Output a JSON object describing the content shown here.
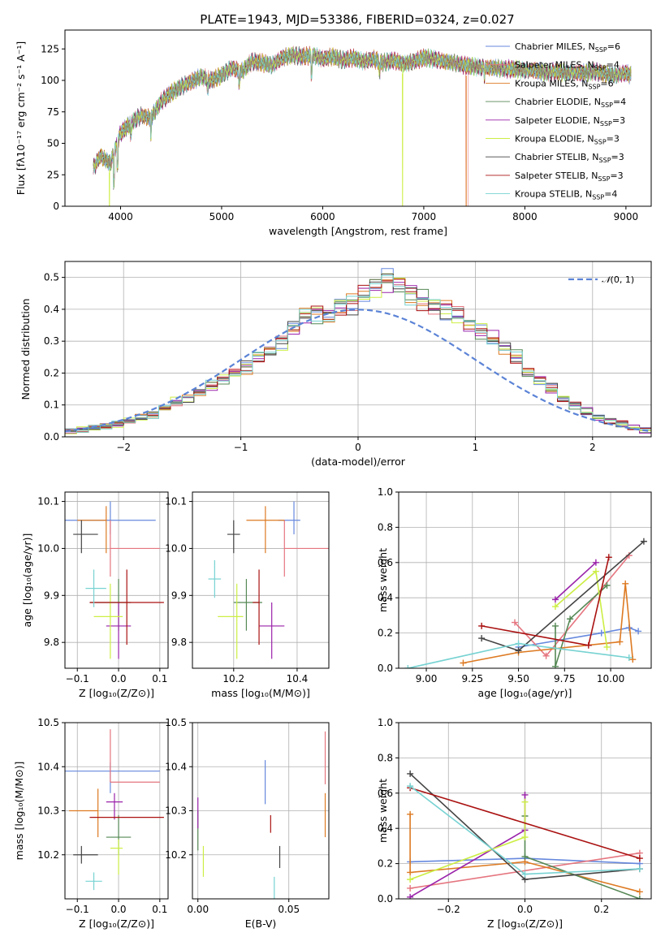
{
  "colors": [
    "#6688dd",
    "#e5757f",
    "#dd7a22",
    "#558855",
    "#9a22aa",
    "#ccee44",
    "#444444",
    "#aa1111",
    "#77d2d2"
  ],
  "chart_data": [
    {
      "type": "line",
      "title": "PLATE=1943, MJD=53386, FIBERID=0324, z=0.027",
      "xlabel": "wavelength [Angstrom, rest frame]",
      "ylabel": "Flux [fλ10⁻¹⁷ erg cm⁻² s⁻¹ A⁻¹]",
      "xlim": [
        3450,
        9250
      ],
      "ylim": [
        0,
        140
      ],
      "xticks": [
        4000,
        5000,
        6000,
        7000,
        8000,
        9000
      ],
      "yticks": [
        0,
        25,
        50,
        75,
        100,
        125
      ],
      "legend_position": "top-right",
      "continuum": {
        "x": [
          3730,
          3800,
          3900,
          4000,
          4100,
          4200,
          4300,
          4400,
          4500,
          4600,
          4700,
          4800,
          4900,
          5000,
          5100,
          5200,
          5300,
          5400,
          5500,
          5600,
          5700,
          5800,
          5900,
          6000,
          6100,
          6200,
          6300,
          6400,
          6500,
          6600,
          6700,
          6800,
          6900,
          7000,
          7100,
          7200,
          7300,
          7400,
          7500,
          7600,
          7700,
          7800,
          7900,
          8000,
          8100,
          8200,
          8300,
          8400,
          8500,
          8600,
          8700,
          8800,
          8900,
          9000,
          9050
        ],
        "y": [
          30,
          40,
          34,
          58,
          66,
          72,
          70,
          83,
          90,
          95,
          99,
          103,
          100,
          104,
          110,
          107,
          115,
          114,
          112,
          118,
          120,
          119,
          120,
          117,
          119,
          116,
          118,
          115,
          117,
          114,
          116,
          113,
          115,
          118,
          117,
          115,
          114,
          112,
          111,
          110,
          110,
          109,
          109,
          108,
          108,
          106,
          107,
          106,
          106,
          106,
          107,
          105,
          104,
          106,
          104
        ]
      },
      "dropouts": [
        {
          "series": "Kroupa ELODIE, N_SSP=3",
          "x": 3890
        },
        {
          "series": "Kroupa ELODIE, N_SSP=3",
          "x": 6790
        },
        {
          "series": "Salpeter MILES, N_SSP=4",
          "x": 7420
        }
      ],
      "series": [
        {
          "name": "Chabrier MILES, N",
          "sub": "SSP",
          "suffix": "=6"
        },
        {
          "name": "Salpeter MILES, N",
          "sub": "SSP",
          "suffix": "=4"
        },
        {
          "name": "Kroupa MILES, N",
          "sub": "SSP",
          "suffix": "=6"
        },
        {
          "name": "Chabrier ELODIE, N",
          "sub": "SSP",
          "suffix": "=4"
        },
        {
          "name": "Salpeter ELODIE, N",
          "sub": "SSP",
          "suffix": "=3"
        },
        {
          "name": "Kroupa ELODIE, N",
          "sub": "SSP",
          "suffix": "=3"
        },
        {
          "name": "Chabrier STELIB, N",
          "sub": "SSP",
          "suffix": "=3"
        },
        {
          "name": "Salpeter STELIB, N",
          "sub": "SSP",
          "suffix": "=3"
        },
        {
          "name": "Kroupa STELIB, N",
          "sub": "SSP",
          "suffix": "=4"
        }
      ]
    },
    {
      "type": "histogram",
      "xlabel": "(data-model)/error",
      "ylabel": "Normed distribution",
      "xlim": [
        -2.5,
        2.5
      ],
      "ylim": [
        0,
        0.55
      ],
      "xticks": [
        -2,
        -1,
        0,
        1,
        2
      ],
      "yticks": [
        0.0,
        0.1,
        0.2,
        0.3,
        0.4,
        0.5
      ],
      "grid": true,
      "bin_edges_start": -2.5,
      "bin_width": 0.1,
      "reference_curve": {
        "name": "N(0,1)",
        "label_script": "𝒩",
        "label_args": "(0, 1)",
        "style": "dashed",
        "mean": 0,
        "sigma": 1
      },
      "densities": [
        0.018,
        0.022,
        0.028,
        0.034,
        0.04,
        0.05,
        0.06,
        0.07,
        0.09,
        0.11,
        0.12,
        0.14,
        0.16,
        0.18,
        0.2,
        0.22,
        0.25,
        0.27,
        0.3,
        0.34,
        0.38,
        0.39,
        0.38,
        0.41,
        0.42,
        0.45,
        0.47,
        0.49,
        0.48,
        0.45,
        0.43,
        0.41,
        0.4,
        0.38,
        0.35,
        0.33,
        0.31,
        0.28,
        0.25,
        0.2,
        0.18,
        0.15,
        0.12,
        0.1,
        0.08,
        0.06,
        0.05,
        0.04,
        0.03,
        0.02
      ]
    },
    {
      "type": "scatter",
      "xlabel": "Z [log₁₀(Z/Z⊙)]",
      "ylabel": "age  [log₁₀(age/yr)]",
      "xlim": [
        -0.13,
        0.12
      ],
      "ylim": [
        9.745,
        10.12
      ],
      "xticks": [
        -0.1,
        0.0,
        0.1
      ],
      "xticklabels": [
        "−0.1",
        "0.0",
        "0.1"
      ],
      "yticks": [
        9.8,
        9.9,
        10.0,
        10.1
      ],
      "grid": true,
      "points": [
        {
          "x": -0.02,
          "y": 10.06,
          "xerr": [
            0.12,
            0.11
          ],
          "yerr": [
            0.03,
            0.04
          ]
        },
        {
          "x": -0.02,
          "y": 10.0,
          "xerr": [
            0.0,
            0.12
          ],
          "yerr": [
            0.06,
            0.06
          ]
        },
        {
          "x": -0.03,
          "y": 10.06,
          "xerr": [
            0.07,
            0.0
          ],
          "yerr": [
            0.07,
            0.03
          ]
        },
        {
          "x": 0.0,
          "y": 9.885,
          "xerr": [
            0.07,
            0.03
          ],
          "yerr": [
            0.06,
            0.05
          ]
        },
        {
          "x": 0.0,
          "y": 9.835,
          "xerr": [
            0.03,
            0.03
          ],
          "yerr": [
            0.07,
            0.05
          ]
        },
        {
          "x": -0.02,
          "y": 9.855,
          "xerr": [
            0.04,
            0.03
          ],
          "yerr": [
            0.09,
            0.07
          ]
        },
        {
          "x": -0.09,
          "y": 10.03,
          "xerr": [
            0.02,
            0.04
          ],
          "yerr": [
            0.04,
            0.03
          ]
        },
        {
          "x": 0.02,
          "y": 9.885,
          "xerr": [
            0.09,
            0.09
          ],
          "yerr": [
            0.09,
            0.07
          ]
        },
        {
          "x": -0.06,
          "y": 9.915,
          "xerr": [
            0.02,
            0.03
          ],
          "yerr": [
            0.04,
            0.04
          ]
        }
      ]
    },
    {
      "type": "scatter",
      "xlabel": "mass [log₁₀(M/M⊙)]",
      "ylabel": "",
      "xlim": [
        10.07,
        10.5
      ],
      "ylim": [
        9.745,
        10.12
      ],
      "xticks": [
        10.2,
        10.4
      ],
      "yticks": [
        9.8,
        9.9,
        10.0,
        10.1
      ],
      "grid": true,
      "points": [
        {
          "x": 10.39,
          "y": 10.06,
          "xerr": [
            0.05,
            0.02
          ],
          "yerr": [
            0.03,
            0.04
          ]
        },
        {
          "x": 10.36,
          "y": 10.0,
          "xerr": [
            0.0,
            0.14
          ],
          "yerr": [
            0.06,
            0.06
          ]
        },
        {
          "x": 10.3,
          "y": 10.06,
          "xerr": [
            0.06,
            0.06
          ],
          "yerr": [
            0.07,
            0.03
          ]
        },
        {
          "x": 10.24,
          "y": 9.885,
          "xerr": [
            0.04,
            0.05
          ],
          "yerr": [
            0.06,
            0.05
          ]
        },
        {
          "x": 10.32,
          "y": 9.835,
          "xerr": [
            0.04,
            0.04
          ],
          "yerr": [
            0.07,
            0.05
          ]
        },
        {
          "x": 10.21,
          "y": 9.855,
          "xerr": [
            0.06,
            0.02
          ],
          "yerr": [
            0.09,
            0.07
          ]
        },
        {
          "x": 10.2,
          "y": 10.03,
          "xerr": [
            0.02,
            0.02
          ],
          "yerr": [
            0.04,
            0.03
          ]
        },
        {
          "x": 10.28,
          "y": 9.885,
          "xerr": [
            0.02,
            0.0
          ],
          "yerr": [
            0.09,
            0.07
          ]
        },
        {
          "x": 10.14,
          "y": 9.935,
          "xerr": [
            0.02,
            0.02
          ],
          "yerr": [
            0.04,
            0.04
          ]
        }
      ]
    },
    {
      "type": "line",
      "xlabel": "age  [log₁₀(age/yr)]",
      "ylabel": "mass weight",
      "xlim": [
        8.85,
        10.22
      ],
      "ylim": [
        0,
        1.0
      ],
      "xticks": [
        9.0,
        9.25,
        9.5,
        9.75,
        10.0
      ],
      "xticklabels": [
        "9.00",
        "9.25",
        "9.50",
        "9.75",
        "10.00"
      ],
      "yticks": [
        0.0,
        0.2,
        0.4,
        0.6,
        0.8,
        1.0
      ],
      "grid": true,
      "series": [
        {
          "x": [
            9.5,
            9.95,
            10.1,
            10.15
          ],
          "y": [
            0.12,
            0.2,
            0.23,
            0.21
          ]
        },
        {
          "x": [
            9.48,
            9.65,
            10.1
          ],
          "y": [
            0.26,
            0.07,
            0.64
          ]
        },
        {
          "x": [
            9.2,
            9.5,
            10.05,
            10.08,
            10.12
          ],
          "y": [
            0.03,
            0.09,
            0.15,
            0.48,
            0.05
          ]
        },
        {
          "x": [
            9.7,
            9.7,
            9.78,
            9.98
          ],
          "y": [
            0.24,
            0.01,
            0.28,
            0.47
          ]
        },
        {
          "x": [
            9.7,
            9.92
          ],
          "y": [
            0.39,
            0.6
          ]
        },
        {
          "x": [
            9.7,
            9.92,
            9.98
          ],
          "y": [
            0.35,
            0.55,
            0.12
          ]
        },
        {
          "x": [
            9.3,
            9.5,
            10.18
          ],
          "y": [
            0.17,
            0.1,
            0.72
          ]
        },
        {
          "x": [
            9.3,
            9.88,
            9.99
          ],
          "y": [
            0.24,
            0.13,
            0.63
          ]
        },
        {
          "x": [
            8.9,
            9.5,
            10.1
          ],
          "y": [
            0.0,
            0.14,
            0.06
          ]
        }
      ]
    },
    {
      "type": "scatter",
      "xlabel": "Z [log₁₀(Z/Z⊙)]",
      "ylabel": "mass [log₁₀(M/M⊙)]",
      "xlim": [
        -0.13,
        0.12
      ],
      "ylim": [
        10.1,
        10.5
      ],
      "xticks": [
        -0.1,
        0.0,
        0.1
      ],
      "xticklabels": [
        "−0.1",
        "0.0",
        "0.1"
      ],
      "yticks": [
        10.2,
        10.3,
        10.4,
        10.5
      ],
      "grid": true,
      "points": [
        {
          "x": -0.02,
          "y": 10.39,
          "xerr": [
            0.12,
            0.12
          ],
          "yerr": [
            0.05,
            0.02
          ]
        },
        {
          "x": -0.02,
          "y": 10.365,
          "xerr": [
            0.0,
            0.12
          ],
          "yerr": [
            0.0,
            0.12
          ]
        },
        {
          "x": -0.05,
          "y": 10.3,
          "xerr": [
            0.07,
            0.0
          ],
          "yerr": [
            0.06,
            0.05
          ]
        },
        {
          "x": 0.0,
          "y": 10.24,
          "xerr": [
            0.03,
            0.03
          ],
          "yerr": [
            0.04,
            0.05
          ]
        },
        {
          "x": -0.01,
          "y": 10.32,
          "xerr": [
            0.02,
            0.02
          ],
          "yerr": [
            0.04,
            0.02
          ]
        },
        {
          "x": 0.0,
          "y": 10.215,
          "xerr": [
            0.02,
            0.01
          ],
          "yerr": [
            0.06,
            0.02
          ]
        },
        {
          "x": -0.09,
          "y": 10.2,
          "xerr": [
            0.02,
            0.04
          ],
          "yerr": [
            0.02,
            0.02
          ]
        },
        {
          "x": 0.02,
          "y": 10.285,
          "xerr": [
            0.09,
            0.09
          ],
          "yerr": [
            0.0,
            0.0
          ]
        },
        {
          "x": -0.06,
          "y": 10.14,
          "xerr": [
            0.02,
            0.02
          ],
          "yerr": [
            0.02,
            0.02
          ]
        }
      ]
    },
    {
      "type": "scatter",
      "xlabel": "E(B-V)",
      "ylabel": "",
      "xlim": [
        -0.003,
        0.072
      ],
      "ylim": [
        10.1,
        10.5
      ],
      "xticks": [
        0.0,
        0.05
      ],
      "xticklabels": [
        "0.00",
        "0.05"
      ],
      "yticks": [
        10.2,
        10.3,
        10.4,
        10.5
      ],
      "grid": true,
      "points": [
        {
          "x": 0.037,
          "y": 10.385,
          "yerr": [
            0.07,
            0.03
          ]
        },
        {
          "x": 0.07,
          "y": 10.41,
          "yerr": [
            0.05,
            0.07
          ]
        },
        {
          "x": 0.07,
          "y": 10.29,
          "yerr": [
            0.05,
            0.05
          ]
        },
        {
          "x": 0.0,
          "y": 10.25,
          "yerr": [
            0.04,
            0.05
          ]
        },
        {
          "x": 0.0,
          "y": 10.3,
          "yerr": [
            0.04,
            0.03
          ]
        },
        {
          "x": 0.003,
          "y": 10.19,
          "yerr": [
            0.04,
            0.03
          ]
        },
        {
          "x": 0.045,
          "y": 10.2,
          "yerr": [
            0.03,
            0.02
          ]
        },
        {
          "x": 0.04,
          "y": 10.26,
          "yerr": [
            0.01,
            0.03
          ]
        },
        {
          "x": 0.042,
          "y": 10.13,
          "yerr": [
            0.03,
            0.02
          ]
        }
      ]
    },
    {
      "type": "line",
      "xlabel": "Z [log₁₀(Z/Z⊙)]",
      "ylabel": "mass weight",
      "xlim": [
        -0.33,
        0.33
      ],
      "ylim": [
        0,
        1.0
      ],
      "xticks": [
        -0.2,
        0.0,
        0.2
      ],
      "xticklabels": [
        "−0.2",
        "0.0",
        "0.2"
      ],
      "yticks": [
        0.0,
        0.2,
        0.4,
        0.6,
        0.8,
        1.0
      ],
      "grid": true,
      "series": [
        {
          "x": [
            -0.3,
            0.0,
            0.3
          ],
          "y": [
            0.21,
            0.23,
            0.2
          ]
        },
        {
          "x": [
            -0.3,
            0.3
          ],
          "y": [
            0.06,
            0.26
          ]
        },
        {
          "x": [
            -0.3,
            -0.3,
            0.0,
            0.3
          ],
          "y": [
            0.48,
            0.15,
            0.21,
            0.04
          ]
        },
        {
          "x": [
            0.0,
            0.0,
            0.3
          ],
          "y": [
            0.47,
            0.24,
            0.0
          ]
        },
        {
          "x": [
            -0.3,
            0.0,
            0.0
          ],
          "y": [
            0.01,
            0.39,
            0.59
          ]
        },
        {
          "x": [
            -0.3,
            0.0,
            0.0
          ],
          "y": [
            0.11,
            0.35,
            0.55
          ]
        },
        {
          "x": [
            -0.3,
            0.0,
            0.3
          ],
          "y": [
            0.71,
            0.11,
            0.17
          ]
        },
        {
          "x": [
            -0.3,
            0.3
          ],
          "y": [
            0.63,
            0.23
          ]
        },
        {
          "x": [
            -0.3,
            0.0,
            0.3
          ],
          "y": [
            0.64,
            0.14,
            0.17
          ]
        }
      ]
    }
  ]
}
